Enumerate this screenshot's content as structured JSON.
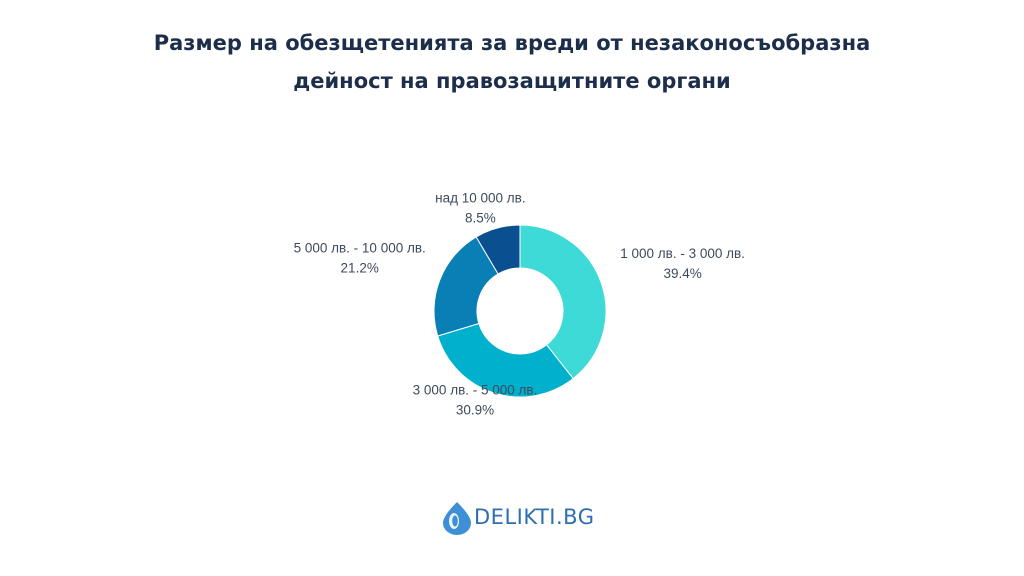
{
  "title": {
    "line1": "Размер на обезщетенията за вреди от незаконосъобразна",
    "line2": "дейност на правозащитните органи"
  },
  "chart_data": {
    "type": "pie",
    "donut": true,
    "slices": [
      {
        "label": "1 000 лв. - 3 000 лв.",
        "value": 39.4,
        "display": "39.4%",
        "color": "#3ddad7"
      },
      {
        "label": "3 000 лв. - 5 000 лв.",
        "value": 30.9,
        "display": "30.9%",
        "color": "#00b0cc"
      },
      {
        "label": "5 000 лв. - 10 000 лв.",
        "value": 21.2,
        "display": "21.2%",
        "color": "#0a7fb5"
      },
      {
        "label": "над 10 000 лв.",
        "value": 8.5,
        "display": "8.5%",
        "color": "#0a4f8f"
      }
    ]
  },
  "logo": {
    "text": "DELIKTI.BG",
    "color": "#2d6fb1"
  }
}
